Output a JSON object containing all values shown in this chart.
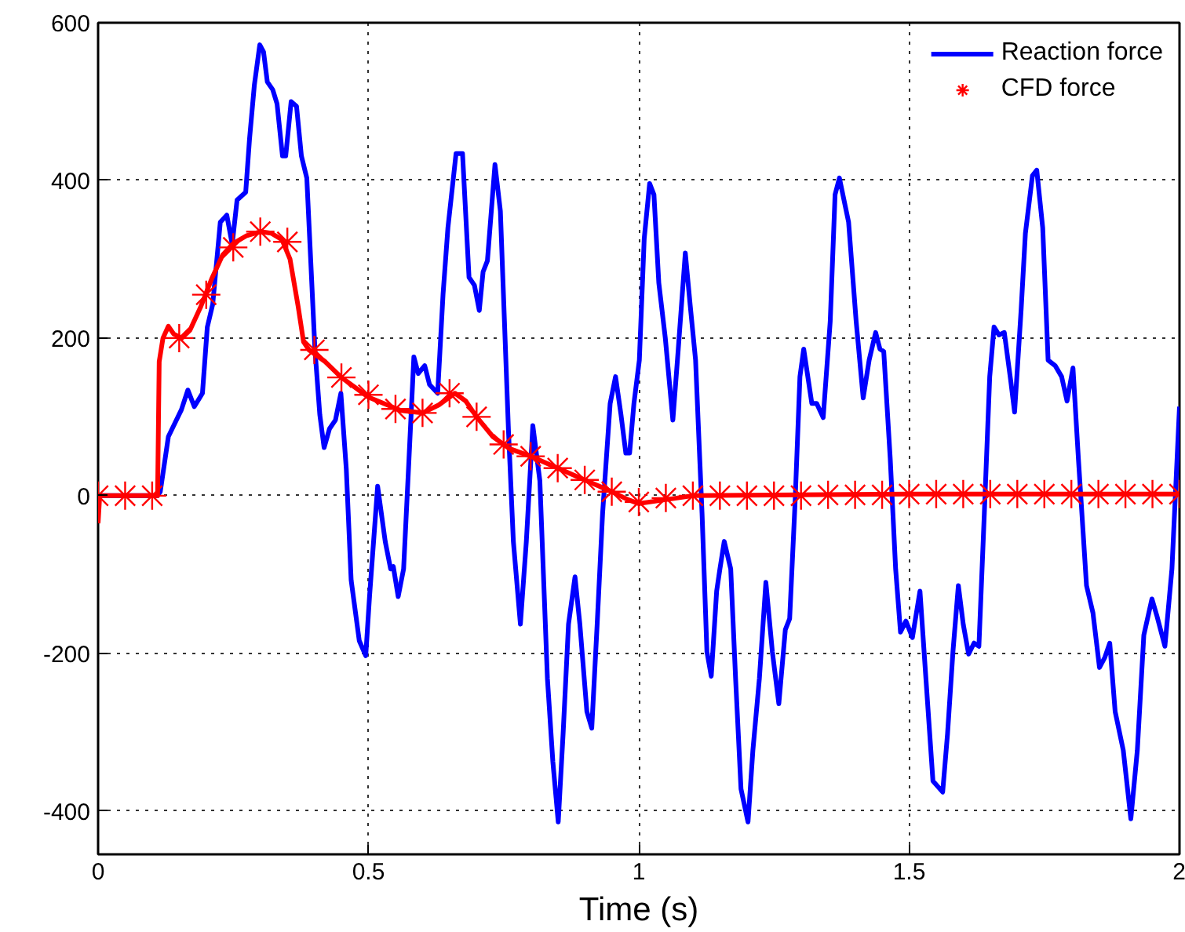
{
  "chart_data": {
    "type": "line",
    "xlabel": "Time (s)",
    "xlim": [
      0,
      2
    ],
    "ylim": [
      -455,
      600
    ],
    "xticks": [
      0,
      0.5,
      1,
      1.5,
      2
    ],
    "yticks": [
      -400,
      -200,
      0,
      200,
      400,
      600
    ],
    "grid": true,
    "legend": "top right",
    "series": [
      {
        "name": "Reaction force",
        "color": "#0000ff",
        "line_style": "solid",
        "marker": "none",
        "x": [
          0,
          0.11,
          0.115,
          0.13,
          0.154,
          0.166,
          0.178,
          0.193,
          0.202,
          0.212,
          0.226,
          0.238,
          0.248,
          0.257,
          0.273,
          0.28,
          0.289,
          0.299,
          0.306,
          0.313,
          0.323,
          0.331,
          0.341,
          0.347,
          0.357,
          0.367,
          0.376,
          0.386,
          0.401,
          0.41,
          0.418,
          0.428,
          0.439,
          0.449,
          0.459,
          0.468,
          0.483,
          0.495,
          0.502,
          0.517,
          0.531,
          0.541,
          0.546,
          0.555,
          0.565,
          0.575,
          0.584,
          0.592,
          0.604,
          0.613,
          0.628,
          0.638,
          0.647,
          0.662,
          0.674,
          0.686,
          0.696,
          0.705,
          0.712,
          0.72,
          0.734,
          0.744,
          0.759,
          0.768,
          0.781,
          0.792,
          0.804,
          0.817,
          0.831,
          0.841,
          0.851,
          0.86,
          0.87,
          0.882,
          0.891,
          0.904,
          0.913,
          0.923,
          0.933,
          0.947,
          0.957,
          0.967,
          0.976,
          0.983,
          0.991,
          1.001,
          1.01,
          1.02,
          1.028,
          1.037,
          1.049,
          1.063,
          1.073,
          1.086,
          1.095,
          1.105,
          1.117,
          1.126,
          1.134,
          1.144,
          1.15,
          1.158,
          1.17,
          1.179,
          1.189,
          1.202,
          1.211,
          1.223,
          1.235,
          1.247,
          1.259,
          1.271,
          1.279,
          1.289,
          1.298,
          1.305,
          1.32,
          1.329,
          1.341,
          1.354,
          1.363,
          1.371,
          1.388,
          1.402,
          1.415,
          1.426,
          1.438,
          1.446,
          1.453,
          1.465,
          1.475,
          1.484,
          1.494,
          1.506,
          1.52,
          1.531,
          1.544,
          1.562,
          1.571,
          1.581,
          1.591,
          1.6,
          1.61,
          1.62,
          1.629,
          1.639,
          1.649,
          1.657,
          1.666,
          1.676,
          1.688,
          1.695,
          1.707,
          1.715,
          1.728,
          1.736,
          1.747,
          1.757,
          1.77,
          1.782,
          1.792,
          1.803,
          1.813,
          1.828,
          1.84,
          1.852,
          1.862,
          1.871,
          1.881,
          1.896,
          1.91,
          1.922,
          1.934,
          1.949,
          1.958,
          1.973,
          1.986,
          2.0
        ],
        "values": [
          0,
          0,
          5,
          75,
          109,
          134,
          113,
          130,
          214,
          243,
          347,
          356,
          319,
          375,
          385,
          452,
          521,
          572,
          563,
          525,
          515,
          497,
          431,
          431,
          500,
          494,
          431,
          403,
          186,
          103,
          61,
          85,
          96,
          130,
          34,
          -107,
          -184,
          -203,
          -128,
          12,
          -58,
          -93,
          -90,
          -128,
          -93,
          47,
          176,
          155,
          165,
          141,
          130,
          256,
          340,
          434,
          434,
          277,
          267,
          235,
          284,
          298,
          420,
          361,
          82,
          -58,
          -163,
          -58,
          89,
          19,
          -232,
          -337,
          -414,
          -302,
          -163,
          -103,
          -163,
          -274,
          -295,
          -163,
          -23,
          117,
          151,
          103,
          54,
          54,
          117,
          172,
          326,
          396,
          382,
          270,
          200,
          96,
          186,
          308,
          242,
          172,
          -23,
          -198,
          -229,
          -121,
          -93,
          -58,
          -93,
          -232,
          -372,
          -414,
          -323,
          -232,
          -110,
          -198,
          -264,
          -170,
          -156,
          -9,
          151,
          186,
          117,
          117,
          99,
          221,
          382,
          403,
          347,
          221,
          124,
          172,
          207,
          186,
          183,
          47,
          -93,
          -173,
          -159,
          -180,
          -121,
          -232,
          -362,
          -376,
          -302,
          -198,
          -114,
          -163,
          -201,
          -187,
          -191,
          -23,
          151,
          214,
          204,
          207,
          145,
          106,
          235,
          333,
          406,
          413,
          340,
          172,
          165,
          151,
          120,
          162,
          47,
          -114,
          -149,
          -218,
          -205,
          -187,
          -274,
          -323,
          -410,
          -323,
          -177,
          -131,
          -152,
          -191,
          -93,
          113
        ]
      },
      {
        "color": "#ff0000",
        "line_style": "solid",
        "marker": "none",
        "x": [
          0,
          0.003,
          0.11,
          0.113,
          0.12,
          0.13,
          0.14,
          0.155,
          0.17,
          0.19,
          0.21,
          0.23,
          0.25,
          0.275,
          0.3,
          0.32,
          0.34,
          0.355,
          0.37,
          0.38,
          0.39,
          0.42,
          0.45,
          0.5,
          0.56,
          0.6,
          0.63,
          0.66,
          0.68,
          0.7,
          0.73,
          0.76,
          0.8,
          0.85,
          0.9,
          0.95,
          0.98,
          1.0,
          1.05,
          1.1,
          1.5,
          2.0
        ],
        "values": [
          -35,
          0,
          0,
          170,
          200,
          215,
          205,
          200,
          210,
          240,
          275,
          305,
          320,
          330,
          335,
          333,
          325,
          300,
          240,
          195,
          185,
          170,
          150,
          125,
          108,
          105,
          115,
          130,
          120,
          100,
          75,
          60,
          50,
          35,
          20,
          5,
          -5,
          -10,
          -5,
          0,
          2,
          2
        ]
      },
      {
        "name": "CFD force",
        "type": "scatter",
        "color": "#ff0000",
        "marker": "cross",
        "x": [
          0,
          0.05,
          0.1,
          0.15,
          0.2,
          0.25,
          0.3,
          0.35,
          0.4,
          0.45,
          0.5,
          0.55,
          0.6,
          0.65,
          0.7,
          0.75,
          0.8,
          0.85,
          0.9,
          0.95,
          1.0,
          1.05,
          1.1,
          1.15,
          1.2,
          1.25,
          1.3,
          1.35,
          1.4,
          1.45,
          1.5,
          1.55,
          1.6,
          1.65,
          1.7,
          1.75,
          1.8,
          1.85,
          1.9,
          1.95,
          2.0
        ],
        "values": [
          0,
          0,
          0,
          200,
          255,
          315,
          335,
          322,
          185,
          150,
          128,
          110,
          105,
          130,
          100,
          65,
          50,
          35,
          20,
          5,
          -8,
          -3,
          0,
          0,
          0,
          0,
          0,
          1,
          1,
          1,
          2,
          2,
          2,
          2,
          2,
          2,
          2,
          2,
          2,
          2,
          2
        ]
      }
    ]
  }
}
